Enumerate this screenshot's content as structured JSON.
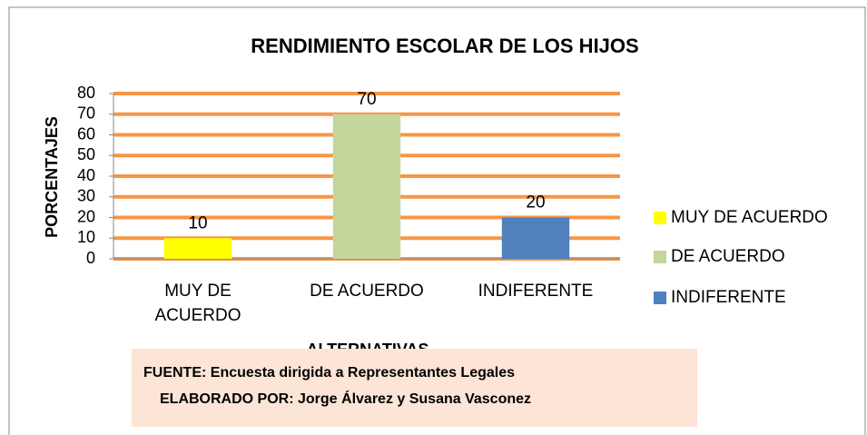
{
  "chart_data": {
    "type": "bar",
    "title": "RENDIMIENTO ESCOLAR DE LOS HIJOS",
    "categories": [
      "MUY DE ACUERDO",
      "DE ACUERDO",
      "INDIFERENTE"
    ],
    "values": [
      10,
      70,
      20
    ],
    "colors": [
      "#ffff00",
      "#c3d69b",
      "#4f81bd"
    ],
    "ylim": [
      0,
      80
    ],
    "yticks": [
      0,
      10,
      20,
      30,
      40,
      50,
      60,
      70,
      80
    ],
    "grid": true,
    "grid_color": "#f79646",
    "y_label": "PORCENTAJES",
    "x_label": "ALTERNATIVAS",
    "legend": "right",
    "source": [
      "FUENTE: Encuesta dirigida a Representantes Legales",
      "ELABORADO POR: Jorge Álvarez y Susana Vasconez"
    ]
  }
}
